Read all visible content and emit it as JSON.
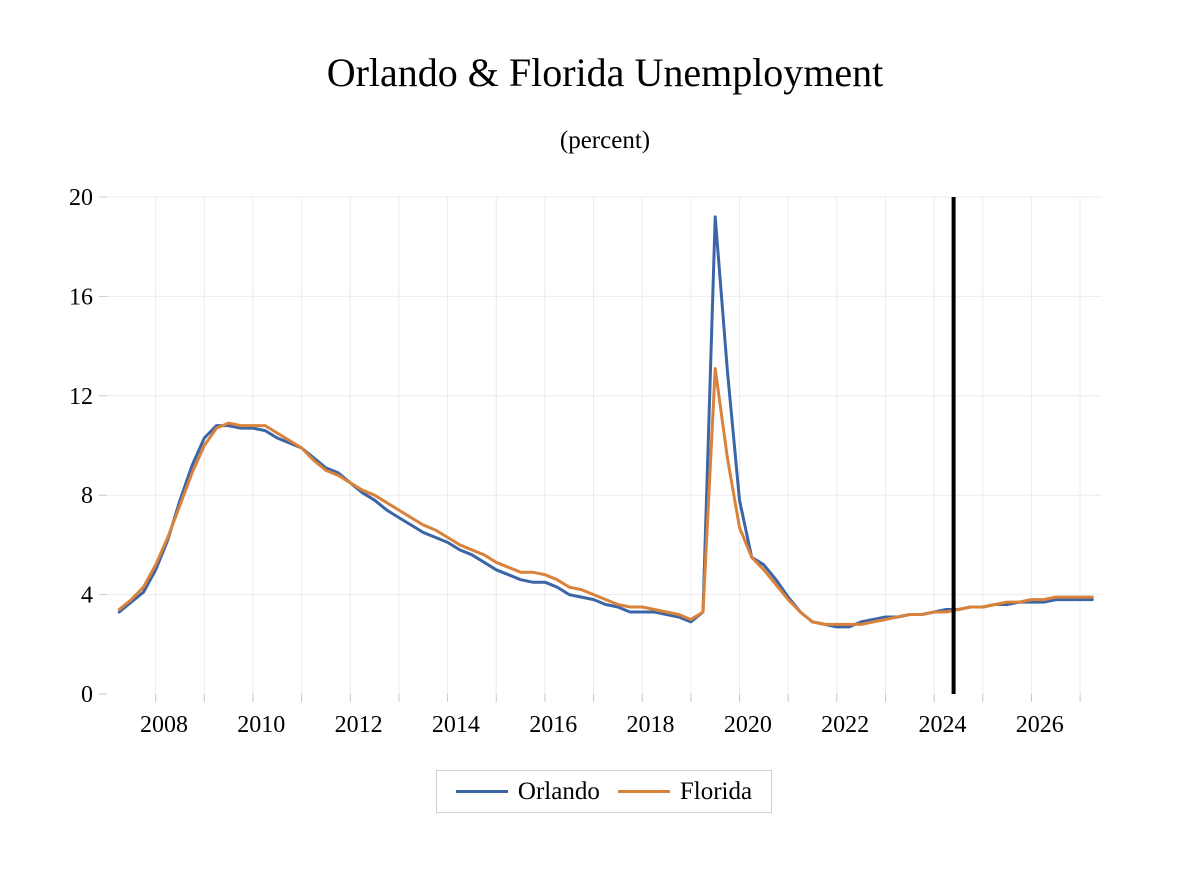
{
  "chart_data": {
    "type": "line",
    "title": "Orlando & Florida Unemployment",
    "subtitle": "(percent)",
    "xlabel": "",
    "ylabel": "",
    "xlim": [
      2007.0,
      2027.45
    ],
    "ylim": [
      0,
      20
    ],
    "y_ticks": [
      0,
      4,
      8,
      12,
      16,
      20
    ],
    "x_ticks": [
      2008,
      2010,
      2012,
      2014,
      2016,
      2018,
      2020,
      2022,
      2024,
      2026
    ],
    "grid": true,
    "legend_position": "bottom",
    "vertical_marker": 2024.4,
    "series": [
      {
        "name": "Orlando",
        "color": "#3a66a7",
        "x": [
          2007.25,
          2007.5,
          2007.75,
          2008.0,
          2008.25,
          2008.5,
          2008.75,
          2009.0,
          2009.25,
          2009.5,
          2009.75,
          2010.0,
          2010.25,
          2010.5,
          2010.75,
          2011.0,
          2011.25,
          2011.5,
          2011.75,
          2012.0,
          2012.25,
          2012.5,
          2012.75,
          2013.0,
          2013.25,
          2013.5,
          2013.75,
          2014.0,
          2014.25,
          2014.5,
          2014.75,
          2015.0,
          2015.25,
          2015.5,
          2015.75,
          2016.0,
          2016.25,
          2016.5,
          2016.75,
          2017.0,
          2017.25,
          2017.5,
          2017.75,
          2018.0,
          2018.25,
          2018.5,
          2018.75,
          2019.0,
          2019.25,
          2019.5,
          2019.75,
          2020.0,
          2020.25,
          2020.5,
          2020.75,
          2021.0,
          2021.25,
          2021.5,
          2021.75,
          2022.0,
          2022.25,
          2022.5,
          2022.75,
          2023.0,
          2023.25,
          2023.5,
          2023.75,
          2024.0,
          2024.25,
          2024.5,
          2024.75,
          2025.0,
          2025.25,
          2025.5,
          2025.75,
          2026.0,
          2026.25,
          2026.5,
          2026.75,
          2027.0,
          2027.25
        ],
        "values": [
          3.3,
          3.7,
          4.1,
          5.0,
          6.2,
          7.8,
          9.2,
          10.3,
          10.8,
          10.8,
          10.7,
          10.7,
          10.6,
          10.3,
          10.1,
          9.9,
          9.5,
          9.1,
          8.9,
          8.5,
          8.1,
          7.8,
          7.4,
          7.1,
          6.8,
          6.5,
          6.3,
          6.1,
          5.8,
          5.6,
          5.3,
          5.0,
          4.8,
          4.6,
          4.5,
          4.5,
          4.3,
          4.0,
          3.9,
          3.8,
          3.6,
          3.5,
          3.3,
          3.3,
          3.3,
          3.2,
          3.1,
          2.9,
          3.3,
          19.2,
          13.0,
          7.8,
          5.5,
          5.2,
          4.6,
          3.9,
          3.3,
          2.9,
          2.8,
          2.7,
          2.7,
          2.9,
          3.0,
          3.1,
          3.1,
          3.2,
          3.2,
          3.3,
          3.4,
          3.4,
          3.5,
          3.5,
          3.6,
          3.6,
          3.7,
          3.7,
          3.7,
          3.8,
          3.8,
          3.8,
          3.8
        ]
      },
      {
        "name": "Florida",
        "color": "#d9823b",
        "x": [
          2007.25,
          2007.5,
          2007.75,
          2008.0,
          2008.25,
          2008.5,
          2008.75,
          2009.0,
          2009.25,
          2009.5,
          2009.75,
          2010.0,
          2010.25,
          2010.5,
          2010.75,
          2011.0,
          2011.25,
          2011.5,
          2011.75,
          2012.0,
          2012.25,
          2012.5,
          2012.75,
          2013.0,
          2013.25,
          2013.5,
          2013.75,
          2014.0,
          2014.25,
          2014.5,
          2014.75,
          2015.0,
          2015.25,
          2015.5,
          2015.75,
          2016.0,
          2016.25,
          2016.5,
          2016.75,
          2017.0,
          2017.25,
          2017.5,
          2017.75,
          2018.0,
          2018.25,
          2018.5,
          2018.75,
          2019.0,
          2019.25,
          2019.5,
          2019.75,
          2020.0,
          2020.25,
          2020.5,
          2020.75,
          2021.0,
          2021.25,
          2021.5,
          2021.75,
          2022.0,
          2022.25,
          2022.5,
          2022.75,
          2023.0,
          2023.25,
          2023.5,
          2023.75,
          2024.0,
          2024.25,
          2024.5,
          2024.75,
          2025.0,
          2025.25,
          2025.5,
          2025.75,
          2026.0,
          2026.25,
          2026.5,
          2026.75,
          2027.0,
          2027.25
        ],
        "values": [
          3.4,
          3.8,
          4.3,
          5.2,
          6.3,
          7.6,
          8.9,
          10.0,
          10.7,
          10.9,
          10.8,
          10.8,
          10.8,
          10.5,
          10.2,
          9.9,
          9.4,
          9.0,
          8.8,
          8.5,
          8.2,
          8.0,
          7.7,
          7.4,
          7.1,
          6.8,
          6.6,
          6.3,
          6.0,
          5.8,
          5.6,
          5.3,
          5.1,
          4.9,
          4.9,
          4.8,
          4.6,
          4.3,
          4.2,
          4.0,
          3.8,
          3.6,
          3.5,
          3.5,
          3.4,
          3.3,
          3.2,
          3.0,
          3.3,
          13.1,
          9.5,
          6.7,
          5.5,
          5.0,
          4.4,
          3.8,
          3.3,
          2.9,
          2.8,
          2.8,
          2.8,
          2.8,
          2.9,
          3.0,
          3.1,
          3.2,
          3.2,
          3.3,
          3.3,
          3.4,
          3.5,
          3.5,
          3.6,
          3.7,
          3.7,
          3.8,
          3.8,
          3.9,
          3.9,
          3.9,
          3.9
        ]
      }
    ]
  }
}
